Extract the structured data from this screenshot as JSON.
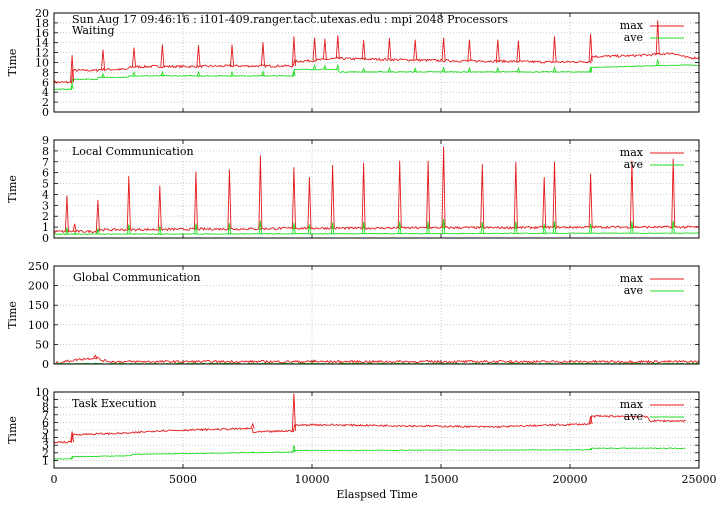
{
  "title": "Sun Aug 17 09:46:16 : i101-409.ranger.tacc.utexas.edu : mpi 2048 Processors",
  "xlabel": "Elaspsed Time",
  "x_ticks": [
    0,
    5000,
    10000,
    15000,
    20000,
    25000
  ],
  "colors": {
    "max": "#e41a1c",
    "ave": "#22dd22",
    "grid": "#aaaaaa",
    "axis": "#000000"
  },
  "chart_data": [
    {
      "type": "line",
      "name": "Waiting",
      "ylabel": "Time",
      "ylim": [
        0,
        20
      ],
      "xlim": [
        0,
        25000
      ],
      "y_ticks": [
        0,
        2,
        4,
        6,
        8,
        10,
        12,
        14,
        16,
        18,
        20
      ],
      "legend": [
        "max",
        "ave"
      ],
      "grid": true,
      "series": [
        {
          "name": "max",
          "x": [
            0,
            700,
            710,
            1700,
            1710,
            2900,
            2910,
            4000,
            5000,
            5500,
            6800,
            8000,
            9300,
            9310,
            10000,
            11000,
            12000,
            13000,
            14000,
            15000,
            16000,
            17000,
            18000,
            19000,
            20000,
            20800,
            20810,
            22000,
            22500,
            23000,
            24000,
            24500,
            25000
          ],
          "y": [
            6,
            6,
            8.4,
            8.4,
            8.6,
            8.6,
            9.1,
            9.2,
            9.2,
            9.2,
            9.3,
            9.3,
            9.3,
            10.2,
            10.4,
            10.8,
            10.7,
            10.6,
            10.5,
            10.4,
            10.3,
            10.3,
            10.2,
            10.1,
            10.1,
            10.2,
            11.2,
            11.3,
            11.4,
            11.5,
            11.9,
            11.0,
            10.9
          ]
        },
        {
          "name": "ave",
          "x": [
            0,
            700,
            710,
            1700,
            1710,
            2900,
            2910,
            5500,
            5510,
            9300,
            9310,
            11000,
            11010,
            20800,
            20810,
            24500,
            25000
          ],
          "y": [
            4.6,
            4.6,
            6.6,
            6.6,
            7.0,
            7.0,
            7.3,
            7.3,
            7.3,
            7.3,
            8.6,
            8.6,
            8.1,
            8.1,
            9.0,
            9.5,
            9.4
          ]
        }
      ],
      "spikes": {
        "x": [
          700,
          1900,
          3100,
          4200,
          5600,
          6900,
          8100,
          9300,
          10100,
          10500,
          11000,
          12000,
          13000,
          14000,
          15100,
          16100,
          17200,
          18000,
          19400,
          20800,
          23400
        ],
        "y": [
          11.5,
          12.6,
          13.0,
          13.6,
          13.5,
          13.6,
          14.1,
          15.3,
          15.0,
          14.8,
          15.5,
          14.5,
          14.9,
          14.6,
          15.0,
          14.6,
          14.6,
          14.4,
          15.3,
          15.8,
          18.5
        ]
      }
    },
    {
      "type": "line",
      "name": "Local Communication",
      "ylabel": "Time",
      "ylim": [
        0,
        9
      ],
      "xlim": [
        0,
        25000
      ],
      "y_ticks": [
        0,
        1,
        2,
        3,
        4,
        5,
        6,
        7,
        8,
        9
      ],
      "legend": [
        "max",
        "ave"
      ],
      "grid": true,
      "series": [
        {
          "name": "max",
          "x": [
            0,
            1700,
            1710,
            5000,
            8000,
            9300,
            12000,
            15000,
            18000,
            20800,
            22000,
            25000
          ],
          "y": [
            0.6,
            0.6,
            0.75,
            0.8,
            0.85,
            0.9,
            0.9,
            0.95,
            0.95,
            1.0,
            1.0,
            1.0
          ]
        },
        {
          "name": "ave",
          "x": [
            0,
            25000
          ],
          "y": [
            0.35,
            0.45
          ]
        }
      ],
      "spikes": {
        "x": [
          500,
          800,
          1700,
          2900,
          4100,
          5500,
          6800,
          8000,
          9300,
          9900,
          10800,
          12000,
          13400,
          14500,
          15100,
          16600,
          17900,
          19000,
          19400,
          20800,
          22400,
          24000
        ],
        "y": [
          3.9,
          1.3,
          3.5,
          5.7,
          4.8,
          6.1,
          6.3,
          7.6,
          6.5,
          5.6,
          6.7,
          6.9,
          7.1,
          7.1,
          8.4,
          6.8,
          7.0,
          5.6,
          7.0,
          5.9,
          7.1,
          7.3
        ]
      }
    },
    {
      "type": "line",
      "name": "Global Communication",
      "ylabel": "Time",
      "ylim": [
        0,
        250
      ],
      "xlim": [
        0,
        25000
      ],
      "y_ticks": [
        0,
        50,
        100,
        150,
        200,
        250
      ],
      "legend": [
        "max",
        "ave"
      ],
      "grid": true,
      "series": [
        {
          "name": "max",
          "x": [
            0,
            1000,
            1700,
            1800,
            2200,
            25000
          ],
          "y": [
            2,
            12,
            16,
            10,
            6,
            6
          ]
        },
        {
          "name": "ave",
          "x": [
            0,
            25000
          ],
          "y": [
            1,
            1
          ]
        }
      ],
      "spikes": {
        "x": [
          1600,
          10100,
          17700
        ],
        "y": [
          22,
          10,
          9
        ]
      }
    },
    {
      "type": "line",
      "name": "Task Execution",
      "ylabel": "Time",
      "ylim": [
        0,
        10
      ],
      "xlim": [
        0,
        25000
      ],
      "y_ticks": [
        1,
        2,
        3,
        4,
        5,
        6,
        7,
        8,
        9,
        10
      ],
      "legend": [
        "max",
        "ave"
      ],
      "grid": true,
      "series": [
        {
          "name": "max",
          "x": [
            0,
            700,
            710,
            3000,
            4000,
            7700,
            7710,
            9300,
            9310,
            10000,
            15000,
            17000,
            20800,
            20810,
            22500,
            23000,
            23100,
            24500
          ],
          "y": [
            3.4,
            3.4,
            4.4,
            4.6,
            4.9,
            5.2,
            4.7,
            4.9,
            5.6,
            5.7,
            5.5,
            5.4,
            5.8,
            6.8,
            6.8,
            6.7,
            6.2,
            6.2
          ]
        },
        {
          "name": "ave",
          "x": [
            0,
            700,
            710,
            3000,
            3010,
            9300,
            9310,
            20800,
            20810,
            24500
          ],
          "y": [
            1.2,
            1.2,
            1.5,
            1.6,
            1.8,
            2.1,
            2.3,
            2.4,
            2.6,
            2.6
          ]
        }
      ],
      "spikes": {
        "x": [
          700,
          7700,
          9300,
          20800
        ],
        "y": [
          4.8,
          5.8,
          9.8,
          6.8
        ]
      }
    }
  ]
}
